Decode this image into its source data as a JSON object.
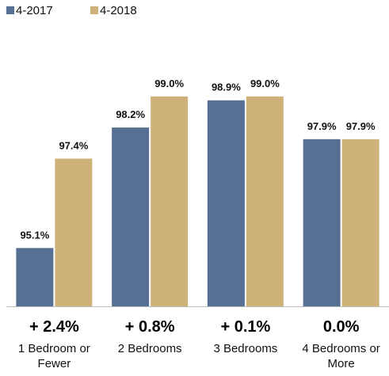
{
  "chart_data": {
    "type": "bar",
    "categories": [
      [
        "1 Bedroom or",
        "Fewer"
      ],
      [
        "2 Bedrooms"
      ],
      [
        "3 Bedrooms"
      ],
      [
        "4 Bedrooms or",
        "More"
      ]
    ],
    "series": [
      {
        "name": "4-2017",
        "color": "#566f93",
        "values": [
          95.1,
          98.2,
          98.9,
          97.9
        ],
        "labels": [
          "95.1%",
          "98.2%",
          "98.9%",
          "97.9%"
        ]
      },
      {
        "name": "4-2018",
        "color": "#cfb27a",
        "values": [
          97.4,
          99.0,
          99.0,
          97.9
        ],
        "labels": [
          "97.4%",
          "99.0%",
          "99.0%",
          "97.9%"
        ]
      }
    ],
    "changes": [
      "+ 2.4%",
      "+ 0.8%",
      "+ 0.1%",
      "0.0%"
    ],
    "ylim": [
      93.6,
      99.2
    ],
    "legend_position": "top-left",
    "grid": false
  }
}
